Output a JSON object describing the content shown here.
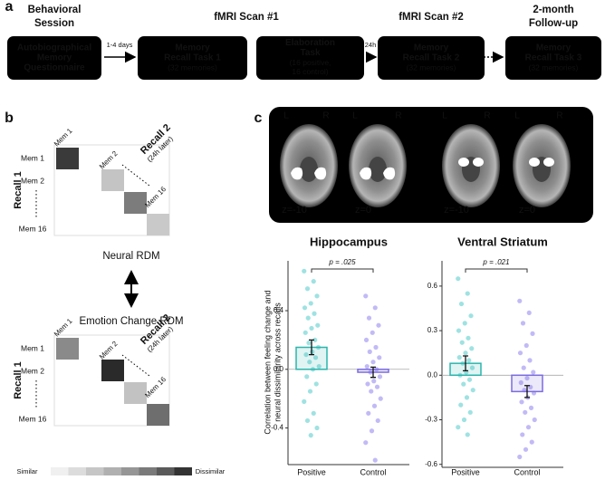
{
  "panel_a": {
    "label": "a",
    "headers": [
      [
        "Behavioral",
        "Session"
      ],
      [
        "fMRI Scan #1"
      ],
      [
        "fMRI Scan #2"
      ],
      [
        "2-month",
        "Follow-up"
      ]
    ],
    "boxes": [
      {
        "title": [
          "Autobiographical",
          "Memory",
          "Questionnaire"
        ],
        "note": []
      },
      {
        "title": [
          "Memory",
          "Recall Task 1"
        ],
        "note": [
          "(32 memories)"
        ]
      },
      {
        "title": [
          "Elaboration",
          "Task"
        ],
        "note": [
          "(16 positive,",
          "16 control)"
        ]
      },
      {
        "title": [
          "Memory",
          "Recall Task 2"
        ],
        "note": [
          "(32 memories)"
        ]
      },
      {
        "title": [
          "Memory",
          "Recall Task 3"
        ],
        "note": [
          "(32 memories)"
        ]
      }
    ],
    "arrow_labels": [
      "1-4 days",
      "24h"
    ]
  },
  "panel_b": {
    "label": "b",
    "rdms": [
      {
        "name": "Neural RDM",
        "row_axis": "Recall 1",
        "col_axis": "Recall 2",
        "col_note": "(24h later)",
        "rows": [
          "Mem 1",
          "Mem 2",
          "Mem 16"
        ],
        "cols": [
          "Mem 1",
          "Mem 2",
          "Mem 16"
        ],
        "cell_colors": [
          "#3a3a3a",
          "#c4c4c4",
          "#7c7c7c",
          "#c9c9c9"
        ]
      },
      {
        "name": "Emotion Change RDM",
        "row_axis": "Recall 1",
        "col_axis": "Recall 2",
        "col_note": "(24h later)",
        "rows": [
          "Mem 1",
          "Mem 2",
          "Mem 16"
        ],
        "cols": [
          "Mem 1",
          "Mem 2",
          "Mem 16"
        ],
        "cell_colors": [
          "#8a8a8a",
          "#2a2a2a",
          "#c2c2c2",
          "#6e6e6e"
        ]
      }
    ],
    "colorbar": {
      "low": "Similar",
      "high": "Dissimilar",
      "colors": [
        "#f0f0f0",
        "#dcdcdc",
        "#c6c6c6",
        "#b0b0b0",
        "#969696",
        "#7a7a7a",
        "#5a5a5a",
        "#333333"
      ]
    }
  },
  "panel_c": {
    "label": "c",
    "orientation": [
      "L",
      "R"
    ],
    "slices": [
      "z=-10",
      "z=0",
      "z=-10",
      "z=0"
    ]
  },
  "chart_data": [
    {
      "type": "bar",
      "title": "Hippocampus",
      "ylabel": [
        "Correlation between feeling change and",
        "neural dissimilarity across recalls"
      ],
      "categories": [
        "Positive",
        "Control"
      ],
      "values": [
        0.15,
        -0.02
      ],
      "errors": [
        0.05,
        0.035
      ],
      "colors": [
        "#2bb5ad",
        "#7b6be0"
      ],
      "point_colors": [
        "#5fcfcf",
        "#9a8cf0"
      ],
      "points": [
        [
          0.67,
          0.6,
          0.55,
          0.5,
          0.45,
          0.42,
          0.38,
          0.35,
          0.3,
          0.28,
          0.25,
          0.2,
          0.18,
          0.15,
          0.12,
          0.1,
          0.08,
          0.05,
          0.02,
          0,
          -0.05,
          -0.1,
          -0.15,
          -0.22,
          -0.3,
          -0.35,
          -0.4,
          -0.45
        ],
        [
          0.5,
          0.42,
          0.35,
          0.3,
          0.25,
          0.2,
          0.15,
          0.12,
          0.08,
          0.05,
          0.02,
          0,
          -0.02,
          -0.05,
          -0.08,
          -0.1,
          -0.12,
          -0.15,
          -0.2,
          -0.25,
          -0.3,
          -0.35,
          -0.42,
          -0.5,
          -0.62
        ]
      ],
      "annotation": "p = .025",
      "ylim": [
        -0.65,
        0.74
      ],
      "yticks": [
        {
          "value": -0.4,
          "label": "-0.4"
        },
        {
          "value": 0,
          "label": "0.0"
        },
        {
          "value": 0.4,
          "label": "0.4"
        }
      ]
    },
    {
      "type": "bar",
      "title": "Ventral Striatum",
      "categories": [
        "Positive",
        "Control"
      ],
      "values": [
        0.08,
        -0.11
      ],
      "errors": [
        0.05,
        0.04
      ],
      "colors": [
        "#2bb5ad",
        "#7b6be0"
      ],
      "point_colors": [
        "#5fcfcf",
        "#9a8cf0"
      ],
      "points": [
        [
          0.65,
          0.55,
          0.48,
          0.4,
          0.35,
          0.3,
          0.25,
          0.22,
          0.18,
          0.15,
          0.12,
          0.1,
          0.08,
          0.05,
          0.02,
          0,
          -0.03,
          -0.06,
          -0.1,
          -0.15,
          -0.2,
          -0.25,
          -0.3,
          -0.35,
          -0.4
        ],
        [
          0.5,
          0.42,
          0.35,
          0.28,
          0.2,
          0.15,
          0.1,
          0.05,
          0.02,
          -0.02,
          -0.05,
          -0.08,
          -0.1,
          -0.12,
          -0.15,
          -0.18,
          -0.22,
          -0.25,
          -0.3,
          -0.35,
          -0.4,
          -0.45,
          -0.5,
          -0.55
        ]
      ],
      "annotation": "p = .021",
      "ylim": [
        -0.62,
        0.77
      ],
      "yticks": [
        {
          "value": -0.6,
          "label": "-0.6"
        },
        {
          "value": -0.3,
          "label": "-0.3"
        },
        {
          "value": 0,
          "label": "0.0"
        },
        {
          "value": 0.3,
          "label": "0.3"
        },
        {
          "value": 0.6,
          "label": "0.6"
        }
      ]
    }
  ]
}
